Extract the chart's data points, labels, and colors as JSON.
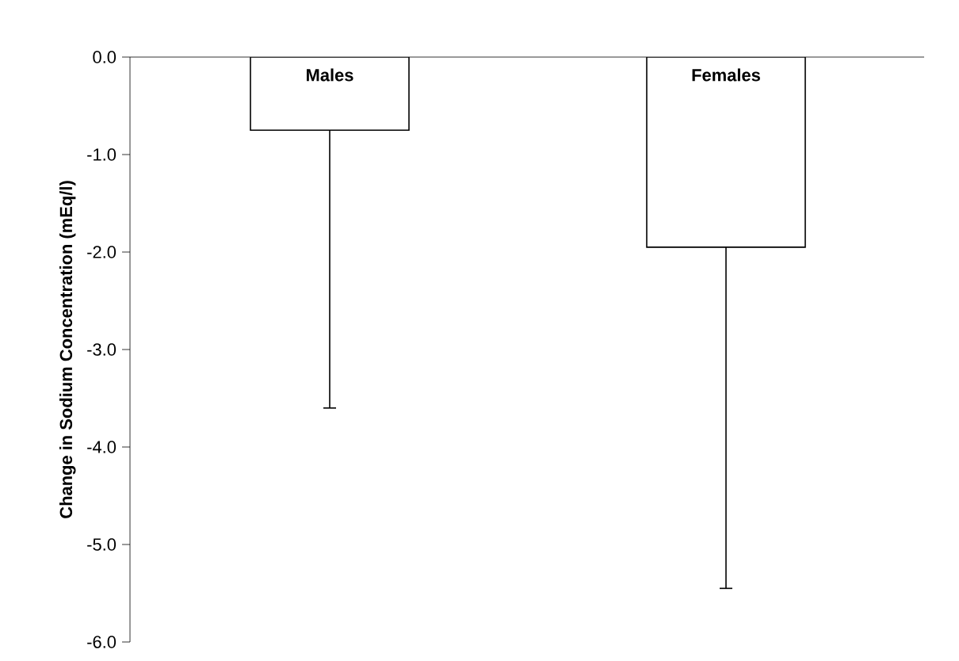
{
  "chart_data": {
    "type": "bar",
    "ylabel": "Change in Sodium Concentration (mEq/l)",
    "categories": [
      "Males",
      "Females"
    ],
    "values": [
      -0.75,
      -1.95
    ],
    "errors": [
      [
        -3.6,
        -0.75
      ],
      [
        -5.45,
        -1.95
      ]
    ],
    "color": "#ffffff",
    "ylim": [
      -6,
      0
    ],
    "yticks": [
      {
        "value": 0,
        "label": "0.0"
      },
      {
        "value": -1,
        "label": "-1.0"
      },
      {
        "value": -2,
        "label": "-2.0"
      },
      {
        "value": -3,
        "label": "-3.0"
      },
      {
        "value": -4,
        "label": "-4.0"
      },
      {
        "value": -5,
        "label": "-5.0"
      },
      {
        "value": -6,
        "label": "-6.0"
      }
    ]
  }
}
